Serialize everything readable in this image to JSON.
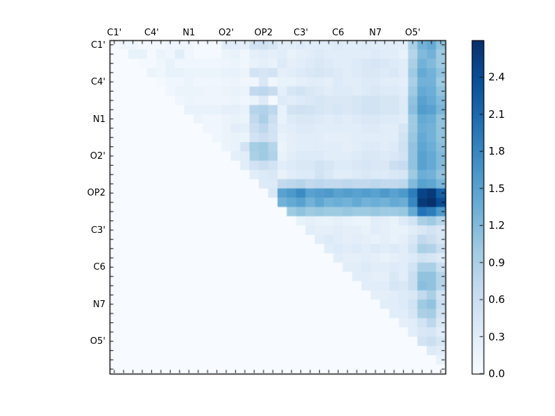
{
  "figure": {
    "background": "#ffffff",
    "title": ""
  },
  "chart_data": {
    "type": "heatmap",
    "description": "Upper-triangular pairwise heatmap over repeating atom-name categories, Blues colormap, identical x and y axes",
    "axis_labels": [
      "C1'",
      "C4'",
      "N1",
      "O2'",
      "OP2",
      "C3'",
      "C6",
      "N7",
      "O5'"
    ],
    "label_stride": 4,
    "grid_size": 36,
    "vmin": 0.0,
    "vmax": 2.7,
    "grid": false,
    "legend": "colorbar-right",
    "colorbar": {
      "tick_values": [
        0.0,
        0.3,
        0.6,
        0.9,
        1.2,
        1.5,
        1.8,
        2.1,
        2.4
      ],
      "tick_labels": [
        "0.0",
        "0.3",
        "0.6",
        "0.9",
        "1.2",
        "1.5",
        "1.8",
        "2.1",
        "2.4"
      ]
    },
    "colormap": {
      "name": "Blues",
      "stops": [
        {
          "t": 0.0,
          "c": "#f7fbff"
        },
        {
          "t": 0.125,
          "c": "#deebf7"
        },
        {
          "t": 0.25,
          "c": "#c6dbef"
        },
        {
          "t": 0.375,
          "c": "#9ecae1"
        },
        {
          "t": 0.5,
          "c": "#6baed6"
        },
        {
          "t": 0.625,
          "c": "#4292c6"
        },
        {
          "t": 0.75,
          "c": "#2171b5"
        },
        {
          "t": 0.875,
          "c": "#08519c"
        },
        {
          "t": 1.0,
          "c": "#08306b"
        }
      ]
    },
    "matrix": [
      [
        0,
        0.1,
        0.1,
        0.05,
        0.05,
        0.05,
        0.1,
        0.1,
        0.1,
        0.05,
        0.05,
        0.05,
        0.3,
        0.3,
        0.25,
        0.5,
        0.55,
        0.45,
        0.3,
        0.3,
        0.35,
        0.3,
        0.3,
        0.3,
        0.35,
        0.3,
        0.3,
        0.35,
        0.3,
        0.3,
        0.3,
        0.25,
        0.9,
        1.3,
        1.4,
        1.1
      ],
      [
        0,
        0,
        0.2,
        0.2,
        0.05,
        0.15,
        0.1,
        0.3,
        0.1,
        0.05,
        0.05,
        0.05,
        0.15,
        0.2,
        0.1,
        0.25,
        0.3,
        0.25,
        0.3,
        0.2,
        0.25,
        0.3,
        0.35,
        0.3,
        0.3,
        0.3,
        0.3,
        0.3,
        0.35,
        0.3,
        0.3,
        0.2,
        0.8,
        1.2,
        1.3,
        1.0
      ],
      [
        0,
        0,
        0,
        0.05,
        0.05,
        0.1,
        0.2,
        0.1,
        0.1,
        0.1,
        0.1,
        0.1,
        0.12,
        0.15,
        0.1,
        0.2,
        0.25,
        0.2,
        0.35,
        0.25,
        0.3,
        0.35,
        0.4,
        0.35,
        0.3,
        0.3,
        0.35,
        0.4,
        0.45,
        0.4,
        0.35,
        0.3,
        0.9,
        1.3,
        1.2,
        1.0
      ],
      [
        0,
        0,
        0,
        0,
        0.15,
        0.1,
        0.2,
        0.2,
        0.15,
        0.15,
        0.15,
        0.15,
        0.2,
        0.2,
        0.15,
        0.5,
        0.45,
        0.5,
        0.25,
        0.3,
        0.35,
        0.4,
        0.45,
        0.4,
        0.35,
        0.3,
        0.35,
        0.4,
        0.4,
        0.35,
        0.4,
        0.3,
        1.0,
        1.4,
        1.3,
        1.1
      ],
      [
        0,
        0,
        0,
        0,
        0,
        0.05,
        0.1,
        0.1,
        0.15,
        0.1,
        0.1,
        0.1,
        0.12,
        0.15,
        0.1,
        0.1,
        0.4,
        0.1,
        0.2,
        0.2,
        0.25,
        0.3,
        0.3,
        0.25,
        0.35,
        0.3,
        0.3,
        0.35,
        0.35,
        0.3,
        0.3,
        0.25,
        0.9,
        1.3,
        1.3,
        1.0
      ],
      [
        0,
        0,
        0,
        0,
        0,
        0,
        0.1,
        0.15,
        0.15,
        0.15,
        0.12,
        0.12,
        0.15,
        0.2,
        0.15,
        0.7,
        0.75,
        0.65,
        0.25,
        0.45,
        0.5,
        0.4,
        0.35,
        0.3,
        0.35,
        0.35,
        0.3,
        0.35,
        0.4,
        0.35,
        0.35,
        0.3,
        1.0,
        1.4,
        1.35,
        1.1
      ],
      [
        0,
        0,
        0,
        0,
        0,
        0,
        0,
        0.1,
        0.15,
        0.12,
        0.12,
        0.12,
        0.12,
        0.15,
        0.1,
        0.15,
        0.35,
        0.05,
        0.35,
        0.3,
        0.35,
        0.4,
        0.45,
        0.4,
        0.4,
        0.4,
        0.45,
        0.5,
        0.5,
        0.45,
        0.45,
        0.35,
        1.1,
        1.5,
        1.4,
        1.2
      ],
      [
        0,
        0,
        0,
        0,
        0,
        0,
        0,
        0,
        0.2,
        0.2,
        0.2,
        0.2,
        0.25,
        0.25,
        0.2,
        0.8,
        0.85,
        0.75,
        0.2,
        0.5,
        0.55,
        0.5,
        0.45,
        0.4,
        0.45,
        0.4,
        0.45,
        0.5,
        0.5,
        0.45,
        0.45,
        0.35,
        1.15,
        1.55,
        1.5,
        1.25
      ],
      [
        0,
        0,
        0,
        0,
        0,
        0,
        0,
        0,
        0,
        0.15,
        0.1,
        0.1,
        0.15,
        0.2,
        0.15,
        0.7,
        0.9,
        0.6,
        0.2,
        0.35,
        0.4,
        0.4,
        0.35,
        0.3,
        0.35,
        0.3,
        0.35,
        0.4,
        0.4,
        0.35,
        0.35,
        0.3,
        1.0,
        1.4,
        1.35,
        1.1
      ],
      [
        0,
        0,
        0,
        0,
        0,
        0,
        0,
        0,
        0,
        0,
        0.1,
        0.1,
        0.15,
        0.3,
        0.25,
        0.6,
        0.75,
        0.5,
        0.25,
        0.3,
        0.35,
        0.35,
        0.3,
        0.3,
        0.3,
        0.3,
        0.3,
        0.35,
        0.35,
        0.3,
        0.3,
        0.45,
        1.0,
        1.35,
        1.3,
        1.1
      ],
      [
        0,
        0,
        0,
        0,
        0,
        0,
        0,
        0,
        0,
        0,
        0,
        0.1,
        0.15,
        0.2,
        0.15,
        0.5,
        0.6,
        0.5,
        0.2,
        0.25,
        0.3,
        0.3,
        0.3,
        0.25,
        0.25,
        0.25,
        0.3,
        0.3,
        0.3,
        0.3,
        0.3,
        0.5,
        1.05,
        1.4,
        1.3,
        1.1
      ],
      [
        0,
        0,
        0,
        0,
        0,
        0,
        0,
        0,
        0,
        0,
        0,
        0,
        0.15,
        0.2,
        0.5,
        0.95,
        1.0,
        0.8,
        0.15,
        0.25,
        0.3,
        0.3,
        0.3,
        0.3,
        0.3,
        0.25,
        0.3,
        0.35,
        0.35,
        0.3,
        0.35,
        0.55,
        1.1,
        1.45,
        1.35,
        1.15
      ],
      [
        0,
        0,
        0,
        0,
        0,
        0,
        0,
        0,
        0,
        0,
        0,
        0,
        0,
        0.25,
        0.3,
        0.9,
        1.0,
        0.85,
        0.2,
        0.3,
        0.35,
        0.35,
        0.35,
        0.3,
        0.3,
        0.3,
        0.35,
        0.4,
        0.4,
        0.35,
        0.4,
        0.5,
        1.1,
        1.5,
        1.4,
        1.2
      ],
      [
        0,
        0,
        0,
        0,
        0,
        0,
        0,
        0,
        0,
        0,
        0,
        0,
        0,
        0,
        0.3,
        0.5,
        0.6,
        0.5,
        0.3,
        0.35,
        0.4,
        0.4,
        0.5,
        0.45,
        0.35,
        0.35,
        0.4,
        0.45,
        0.4,
        0.4,
        0.6,
        0.65,
        1.1,
        1.5,
        1.4,
        1.2
      ],
      [
        0,
        0,
        0,
        0,
        0,
        0,
        0,
        0,
        0,
        0,
        0,
        0,
        0,
        0,
        0,
        0.3,
        0.35,
        0.4,
        0.2,
        0.3,
        0.35,
        0.35,
        0.5,
        0.4,
        0.3,
        0.3,
        0.35,
        0.4,
        0.35,
        0.35,
        0.4,
        0.45,
        1.0,
        1.35,
        1.3,
        1.1
      ],
      [
        0,
        0,
        0,
        0,
        0,
        0,
        0,
        0,
        0,
        0,
        0,
        0,
        0,
        0,
        0,
        0,
        0.35,
        0.35,
        0.7,
        0.75,
        0.8,
        0.7,
        0.75,
        0.7,
        0.7,
        0.75,
        0.7,
        0.7,
        0.75,
        0.7,
        0.7,
        0.75,
        1.2,
        1.5,
        1.45,
        1.25
      ],
      [
        0,
        0,
        0,
        0,
        0,
        0,
        0,
        0,
        0,
        0,
        0,
        0,
        0,
        0,
        0,
        0,
        0,
        0.4,
        1.5,
        1.6,
        1.75,
        1.5,
        1.55,
        1.6,
        1.5,
        1.55,
        1.5,
        1.55,
        1.5,
        1.6,
        1.5,
        1.6,
        1.9,
        2.5,
        2.6,
        2.2
      ],
      [
        0,
        0,
        0,
        0,
        0,
        0,
        0,
        0,
        0,
        0,
        0,
        0,
        0,
        0,
        0,
        0,
        0,
        0,
        1.3,
        1.4,
        1.5,
        1.3,
        1.45,
        1.3,
        1.35,
        1.3,
        1.4,
        1.3,
        1.35,
        1.3,
        1.4,
        1.35,
        1.8,
        2.6,
        2.7,
        2.4
      ],
      [
        0,
        0,
        0,
        0,
        0,
        0,
        0,
        0,
        0,
        0,
        0,
        0,
        0,
        0,
        0,
        0,
        0,
        0,
        0,
        1.0,
        1.1,
        1.0,
        1.05,
        1.0,
        1.0,
        1.05,
        1.0,
        1.0,
        1.05,
        1.0,
        1.0,
        1.05,
        1.4,
        2.0,
        1.9,
        1.6
      ],
      [
        0,
        0,
        0,
        0,
        0,
        0,
        0,
        0,
        0,
        0,
        0,
        0,
        0,
        0,
        0,
        0,
        0,
        0,
        0,
        0,
        0.2,
        0.25,
        0.2,
        0.2,
        0.25,
        0.2,
        0.15,
        0.15,
        0.3,
        0.25,
        0.2,
        0.35,
        0.5,
        0.9,
        1.0,
        0.8
      ],
      [
        0,
        0,
        0,
        0,
        0,
        0,
        0,
        0,
        0,
        0,
        0,
        0,
        0,
        0,
        0,
        0,
        0,
        0,
        0,
        0,
        0,
        0.3,
        0.25,
        0.25,
        0.3,
        0.25,
        0.25,
        0.2,
        0.3,
        0.25,
        0.2,
        0.2,
        0.3,
        0.4,
        0.5,
        0.4
      ],
      [
        0,
        0,
        0,
        0,
        0,
        0,
        0,
        0,
        0,
        0,
        0,
        0,
        0,
        0,
        0,
        0,
        0,
        0,
        0,
        0,
        0,
        0,
        0.3,
        0.35,
        0.3,
        0.25,
        0.3,
        0.25,
        0.2,
        0.25,
        0.2,
        0.25,
        0.4,
        0.7,
        0.6,
        0.45
      ],
      [
        0,
        0,
        0,
        0,
        0,
        0,
        0,
        0,
        0,
        0,
        0,
        0,
        0,
        0,
        0,
        0,
        0,
        0,
        0,
        0,
        0,
        0,
        0,
        0.3,
        0.35,
        0.3,
        0.35,
        0.3,
        0.35,
        0.3,
        0.35,
        0.3,
        0.5,
        0.9,
        0.85,
        0.6
      ],
      [
        0,
        0,
        0,
        0,
        0,
        0,
        0,
        0,
        0,
        0,
        0,
        0,
        0,
        0,
        0,
        0,
        0,
        0,
        0,
        0,
        0,
        0,
        0,
        0,
        0.3,
        0.25,
        0.25,
        0.3,
        0.25,
        0.2,
        0.25,
        0.3,
        0.35,
        0.5,
        0.45,
        0.35
      ],
      [
        0,
        0,
        0,
        0,
        0,
        0,
        0,
        0,
        0,
        0,
        0,
        0,
        0,
        0,
        0,
        0,
        0,
        0,
        0,
        0,
        0,
        0,
        0,
        0,
        0,
        0.3,
        0.3,
        0.35,
        0.3,
        0.3,
        0.35,
        0.3,
        0.5,
        0.9,
        0.9,
        0.6
      ],
      [
        0,
        0,
        0,
        0,
        0,
        0,
        0,
        0,
        0,
        0,
        0,
        0,
        0,
        0,
        0,
        0,
        0,
        0,
        0,
        0,
        0,
        0,
        0,
        0,
        0,
        0,
        0.3,
        0.3,
        0.25,
        0.25,
        0.4,
        0.3,
        0.6,
        1.1,
        1.1,
        0.8
      ],
      [
        0,
        0,
        0,
        0,
        0,
        0,
        0,
        0,
        0,
        0,
        0,
        0,
        0,
        0,
        0,
        0,
        0,
        0,
        0,
        0,
        0,
        0,
        0,
        0,
        0,
        0,
        0,
        0.3,
        0.3,
        0.3,
        0.45,
        0.4,
        0.6,
        1.15,
        1.1,
        0.8
      ],
      [
        0,
        0,
        0,
        0,
        0,
        0,
        0,
        0,
        0,
        0,
        0,
        0,
        0,
        0,
        0,
        0,
        0,
        0,
        0,
        0,
        0,
        0,
        0,
        0,
        0,
        0,
        0,
        0,
        0.25,
        0.25,
        0.3,
        0.35,
        0.4,
        0.7,
        0.9,
        0.5
      ],
      [
        0,
        0,
        0,
        0,
        0,
        0,
        0,
        0,
        0,
        0,
        0,
        0,
        0,
        0,
        0,
        0,
        0,
        0,
        0,
        0,
        0,
        0,
        0,
        0,
        0,
        0,
        0,
        0,
        0,
        0.3,
        0.3,
        0.35,
        0.5,
        1.0,
        1.1,
        0.6
      ],
      [
        0,
        0,
        0,
        0,
        0,
        0,
        0,
        0,
        0,
        0,
        0,
        0,
        0,
        0,
        0,
        0,
        0,
        0,
        0,
        0,
        0,
        0,
        0,
        0,
        0,
        0,
        0,
        0,
        0,
        0,
        0.3,
        0.3,
        0.45,
        0.9,
        0.95,
        0.5
      ],
      [
        0,
        0,
        0,
        0,
        0,
        0,
        0,
        0,
        0,
        0,
        0,
        0,
        0,
        0,
        0,
        0,
        0,
        0,
        0,
        0,
        0,
        0,
        0,
        0,
        0,
        0,
        0,
        0,
        0,
        0,
        0,
        0.25,
        0.3,
        0.5,
        0.75,
        0.4
      ],
      [
        0,
        0,
        0,
        0,
        0,
        0,
        0,
        0,
        0,
        0,
        0,
        0,
        0,
        0,
        0,
        0,
        0,
        0,
        0,
        0,
        0,
        0,
        0,
        0,
        0,
        0,
        0,
        0,
        0,
        0,
        0,
        0,
        0.3,
        0.4,
        0.45,
        0.3
      ],
      [
        0,
        0,
        0,
        0,
        0,
        0,
        0,
        0,
        0,
        0,
        0,
        0,
        0,
        0,
        0,
        0,
        0,
        0,
        0,
        0,
        0,
        0,
        0,
        0,
        0,
        0,
        0,
        0,
        0,
        0,
        0,
        0,
        0,
        0.5,
        0.6,
        0.45
      ],
      [
        0,
        0,
        0,
        0,
        0,
        0,
        0,
        0,
        0,
        0,
        0,
        0,
        0,
        0,
        0,
        0,
        0,
        0,
        0,
        0,
        0,
        0,
        0,
        0,
        0,
        0,
        0,
        0,
        0,
        0,
        0,
        0,
        0,
        0,
        0.35,
        0.3
      ],
      [
        0,
        0,
        0,
        0,
        0,
        0,
        0,
        0,
        0,
        0,
        0,
        0,
        0,
        0,
        0,
        0,
        0,
        0,
        0,
        0,
        0,
        0,
        0,
        0,
        0,
        0,
        0,
        0,
        0,
        0,
        0,
        0,
        0,
        0,
        0,
        0.2
      ],
      [
        0,
        0,
        0,
        0,
        0,
        0,
        0,
        0,
        0,
        0,
        0,
        0,
        0,
        0,
        0,
        0,
        0,
        0,
        0,
        0,
        0,
        0,
        0,
        0,
        0,
        0,
        0,
        0,
        0,
        0,
        0,
        0,
        0,
        0,
        0,
        0
      ]
    ]
  }
}
